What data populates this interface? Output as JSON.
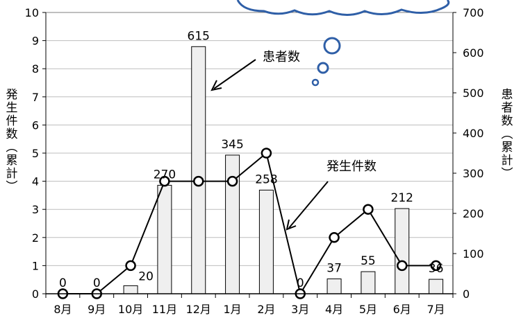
{
  "chart_data": {
    "type": "bar",
    "categories": [
      "8月",
      "9月",
      "10月",
      "11月",
      "12月",
      "1月",
      "2月",
      "3月",
      "4月",
      "5月",
      "6月",
      "7月"
    ],
    "left_axis": {
      "label": "発生件数(累計)",
      "ylim": [
        0,
        10
      ],
      "ticks": [
        "0",
        "1",
        "2",
        "3",
        "4",
        "5",
        "6",
        "7",
        "8",
        "9",
        "10"
      ]
    },
    "right_axis": {
      "label": "患者数(累計)",
      "ylim": [
        0,
        700
      ],
      "ticks": [
        "0",
        "100",
        "200",
        "300",
        "400",
        "500",
        "600",
        "700"
      ]
    },
    "series": [
      {
        "name": "患者数",
        "kind": "bar",
        "axis": "right",
        "values": [
          0,
          0,
          20,
          270,
          615,
          345,
          258,
          0,
          37,
          55,
          212,
          36
        ],
        "data_labels": [
          "0",
          "0",
          "20",
          "270",
          "615",
          "345",
          "258",
          "0",
          "37",
          "55",
          "212",
          "36"
        ]
      },
      {
        "name": "発生件数",
        "kind": "line",
        "axis": "left",
        "values": [
          0,
          0,
          1,
          4,
          4,
          4,
          5,
          0,
          2,
          3,
          1,
          1
        ]
      }
    ],
    "annotations": [
      "患者数",
      "発生件数"
    ],
    "grid": "horizontal",
    "colors": {
      "bar_fill": "#efefef",
      "bar_stroke": "#000000",
      "line": "#000000",
      "grid": "#bdbdbd",
      "cloud": "#2f5fa7"
    }
  }
}
